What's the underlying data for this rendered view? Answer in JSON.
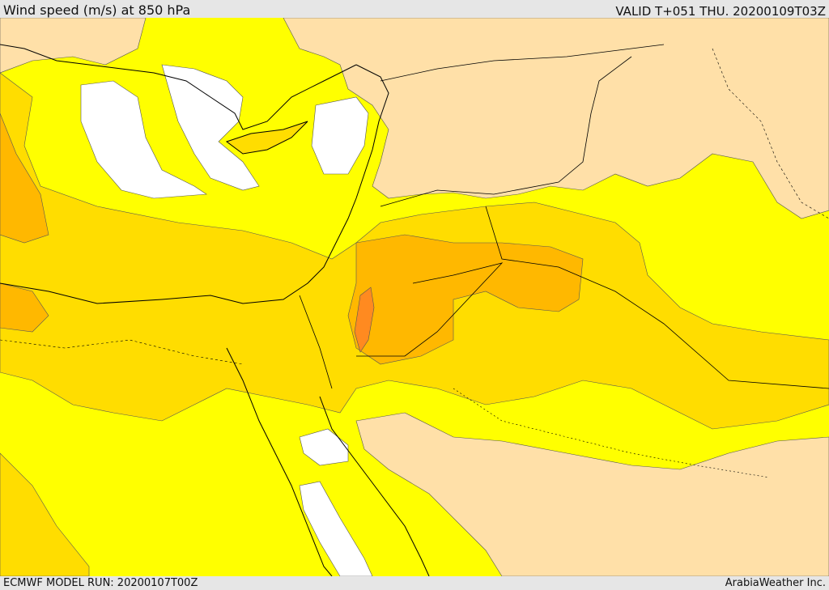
{
  "header": {
    "title": "Wind speed (m/s) at 850 hPa",
    "valid": "VALID T+051 THU. 20200109T03Z"
  },
  "footer": {
    "model_run": "ECMWF MODEL RUN: 20200107T00Z",
    "credit": "ArabiaWeather Inc."
  },
  "colors": {
    "calm": "#ffffff",
    "band_1": "#ffe0a8",
    "band_2": "#ffff00",
    "band_3": "#ffdd00",
    "band_4": "#ffb800",
    "band_5": "#ff9a10",
    "band_6": "#ff7030",
    "coastline": "#000000",
    "border": "#000000"
  }
}
